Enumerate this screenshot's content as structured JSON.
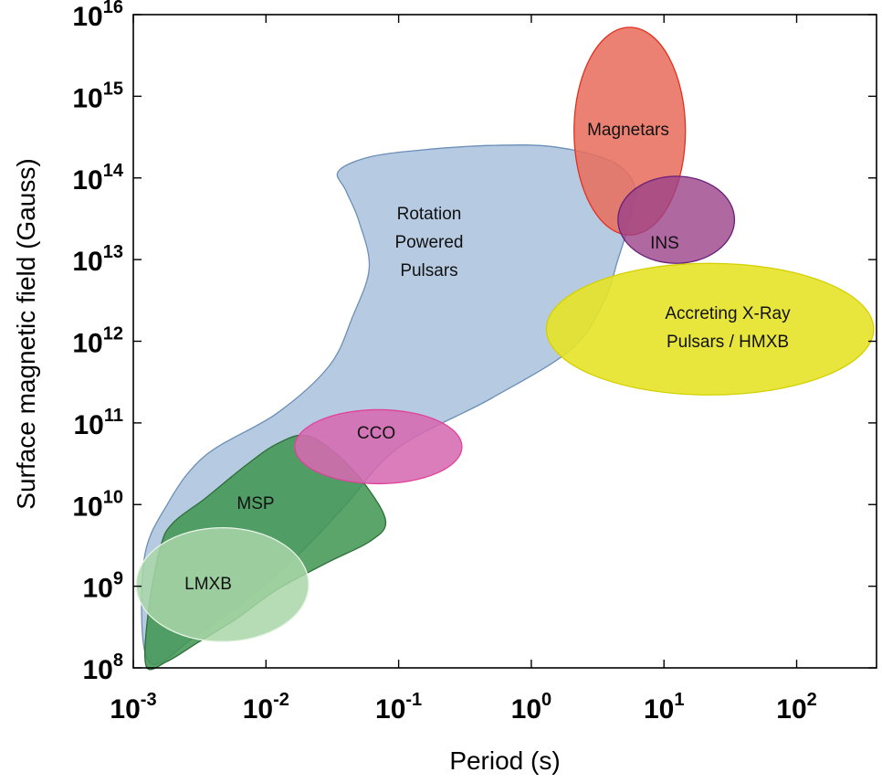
{
  "chart_data": {
    "type": "scatter",
    "title": "",
    "xlabel": "Period (s)",
    "ylabel": "Surface magnetic field (Gauss)",
    "x_scale": "log",
    "y_scale": "log",
    "xlim": [
      0.001,
      400
    ],
    "ylim": [
      100000000.0,
      1e+16
    ],
    "x_ticks": [
      {
        "base": "10",
        "exp": "-3"
      },
      {
        "base": "10",
        "exp": "-2"
      },
      {
        "base": "10",
        "exp": "-1"
      },
      {
        "base": "10",
        "exp": "0"
      },
      {
        "base": "10",
        "exp": "1"
      },
      {
        "base": "10",
        "exp": "2"
      }
    ],
    "y_ticks": [
      {
        "base": "10",
        "exp": "8"
      },
      {
        "base": "10",
        "exp": "9"
      },
      {
        "base": "10",
        "exp": "10"
      },
      {
        "base": "10",
        "exp": "11"
      },
      {
        "base": "10",
        "exp": "12"
      },
      {
        "base": "10",
        "exp": "13"
      },
      {
        "base": "10",
        "exp": "14"
      },
      {
        "base": "10",
        "exp": "15"
      },
      {
        "base": "10",
        "exp": "16"
      }
    ],
    "grid": false,
    "legend": "none",
    "regions": [
      {
        "label": [
          "Rotation",
          "Powered",
          "Pulsars"
        ],
        "shape": "polygon",
        "fill": "#a9c1dc",
        "stroke": "#6b8fb8",
        "opacity": 0.85,
        "points": [
          [
            0.0013,
            120000000.0
          ],
          [
            0.0012,
            2000000000.0
          ],
          [
            0.0018,
            10000000000.0
          ],
          [
            0.0035,
            40000000000.0
          ],
          [
            0.012,
            130000000000.0
          ],
          [
            0.03,
            500000000000.0
          ],
          [
            0.045,
            2000000000000.0
          ],
          [
            0.06,
            8000000000000.0
          ],
          [
            0.05,
            30000000000000.0
          ],
          [
            0.04,
            70000000000000.0
          ],
          [
            0.035,
            120000000000000.0
          ],
          [
            0.06,
            180000000000000.0
          ],
          [
            0.15,
            220000000000000.0
          ],
          [
            0.5,
            250000000000000.0
          ],
          [
            1.5,
            240000000000000.0
          ],
          [
            4,
            160000000000000.0
          ],
          [
            6,
            80000000000000.0
          ],
          [
            5.5,
            30000000000000.0
          ],
          [
            4.5,
            10000000000000.0
          ],
          [
            3.5,
            3000000000000.0
          ],
          [
            2,
            800000000000.0
          ],
          [
            0.5,
            200000000000.0
          ],
          [
            0.1,
            50000000000.0
          ],
          [
            0.04,
            10000000000.0
          ],
          [
            0.02,
            3000000000.0
          ],
          [
            0.008,
            800000000.0
          ],
          [
            0.003,
            250000000.0
          ],
          [
            0.0013,
            120000000.0
          ]
        ]
      },
      {
        "label": [
          "MSP"
        ],
        "shape": "polygon",
        "fill": "#3f9550",
        "stroke": "#2d6e3a",
        "opacity": 0.85,
        "points": [
          [
            0.00125,
            105000000.0
          ],
          [
            0.0013,
            500000000.0
          ],
          [
            0.0016,
            3000000000.0
          ],
          [
            0.002,
            6000000000.0
          ],
          [
            0.0035,
            12000000000.0
          ],
          [
            0.007,
            30000000000.0
          ],
          [
            0.012,
            55000000000.0
          ],
          [
            0.02,
            70000000000.0
          ],
          [
            0.035,
            40000000000.0
          ],
          [
            0.06,
            15000000000.0
          ],
          [
            0.08,
            6000000000.0
          ],
          [
            0.06,
            3500000000.0
          ],
          [
            0.03,
            2000000000.0
          ],
          [
            0.012,
            900000000.0
          ],
          [
            0.006,
            400000000.0
          ],
          [
            0.003,
            200000000.0
          ],
          [
            0.0018,
            120000000.0
          ],
          [
            0.00125,
            105000000.0
          ]
        ]
      },
      {
        "label": [
          "CCO"
        ],
        "shape": "ellipse",
        "fill": "#d66ab2",
        "stroke": "#e0429a",
        "opacity": 0.88,
        "x_range": [
          0.0165,
          0.3
        ],
        "y_range": [
          18000000000.0,
          145000000000.0
        ]
      },
      {
        "label": [
          "LMXB"
        ],
        "shape": "ellipse",
        "fill": "#a9d6a8",
        "stroke": "#e8f4e6",
        "opacity": 0.85,
        "x_range": [
          0.00105,
          0.021
        ],
        "y_range": [
          210000000.0,
          5200000000.0
        ]
      },
      {
        "label": [
          "Magnetars"
        ],
        "shape": "ellipse",
        "fill": "#e8705e",
        "stroke": "#e23020",
        "opacity": 0.88,
        "x_range": [
          2.1,
          14.5
        ],
        "y_range": [
          20000000000000.0,
          7000000000000000.0
        ]
      },
      {
        "label": [
          "INS"
        ],
        "shape": "ellipse",
        "fill": "#9c4289",
        "stroke": "#6a1f77",
        "opacity": 0.8,
        "x_range": [
          4.5,
          34
        ],
        "y_range": [
          9000000000000.0,
          105000000000000.0
        ]
      },
      {
        "label": [
          "Accreting X-Ray",
          "Pulsars / HMXB"
        ],
        "shape": "ellipse",
        "fill": "#e6e328",
        "stroke": "#d4d000",
        "opacity": 0.9,
        "x_range": [
          1.3,
          380
        ],
        "y_range": [
          220000000000.0,
          9000000000000.0
        ]
      }
    ]
  }
}
